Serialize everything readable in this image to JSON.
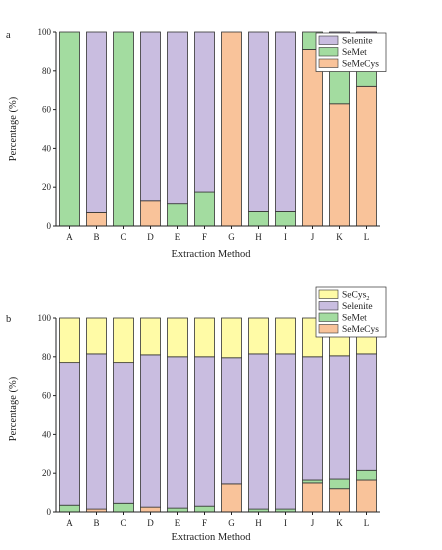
{
  "colors": {
    "Selenite": "#C9BDE0",
    "SeMet": "#A3DCA0",
    "SeMeCys": "#F9C39A",
    "SeCys2": "#FFFBA6"
  },
  "chart_data": [
    {
      "type": "bar",
      "stacked": true,
      "panel_label": "a",
      "xlabel": "Extraction Method",
      "ylabel": "Percentage (%)",
      "ylim": [
        0,
        100
      ],
      "yticks": [
        0,
        20,
        40,
        60,
        80,
        100
      ],
      "categories": [
        "A",
        "B",
        "C",
        "D",
        "E",
        "F",
        "G",
        "H",
        "I",
        "J",
        "K",
        "L"
      ],
      "legend_position": "top-right",
      "series": [
        {
          "name": "SeMeCys",
          "values": [
            0,
            7,
            0,
            13,
            0,
            0,
            100,
            0,
            0,
            91,
            63,
            72
          ]
        },
        {
          "name": "SeMet",
          "values": [
            100,
            0,
            100,
            0,
            11.5,
            17.5,
            0,
            7.5,
            7.5,
            9,
            26.5,
            20
          ]
        },
        {
          "name": "Selenite",
          "values": [
            0,
            93,
            0,
            87,
            88.5,
            82.5,
            0,
            92.5,
            92.5,
            0,
            10.5,
            8
          ]
        }
      ],
      "legend": [
        {
          "name": "Selenite",
          "color_key": "Selenite"
        },
        {
          "name": "SeMet",
          "color_key": "SeMet"
        },
        {
          "name": "SeMeCys",
          "color_key": "SeMeCys"
        }
      ]
    },
    {
      "type": "bar",
      "stacked": true,
      "panel_label": "b",
      "xlabel": "Extraction Method",
      "ylabel": "Percentage (%)",
      "ylim": [
        0,
        100
      ],
      "yticks": [
        0,
        20,
        40,
        60,
        80,
        100
      ],
      "categories": [
        "A",
        "B",
        "C",
        "D",
        "E",
        "F",
        "G",
        "H",
        "I",
        "J",
        "K",
        "L"
      ],
      "legend_position": "top-right",
      "series": [
        {
          "name": "SeMeCys",
          "values": [
            0,
            1.5,
            0,
            2.5,
            0,
            0,
            14.5,
            0,
            0,
            15,
            12,
            16.5
          ]
        },
        {
          "name": "SeMet",
          "values": [
            3.5,
            0,
            4.5,
            0,
            2,
            3,
            0,
            1.5,
            1.5,
            1.5,
            5,
            5
          ]
        },
        {
          "name": "Selenite",
          "values": [
            73.5,
            80,
            72.5,
            78.5,
            78,
            77,
            65,
            80,
            80,
            63.5,
            63.5,
            60
          ]
        },
        {
          "name": "SeCys2",
          "values": [
            23,
            18.5,
            23,
            19,
            20,
            20,
            20.5,
            18.5,
            18.5,
            20,
            19.5,
            18.5
          ]
        }
      ],
      "legend": [
        {
          "name": "SeCys",
          "sub": "2",
          "color_key": "SeCys2"
        },
        {
          "name": "Selenite",
          "color_key": "Selenite"
        },
        {
          "name": "SeMet",
          "color_key": "SeMet"
        },
        {
          "name": "SeMeCys",
          "color_key": "SeMeCys"
        }
      ]
    }
  ]
}
